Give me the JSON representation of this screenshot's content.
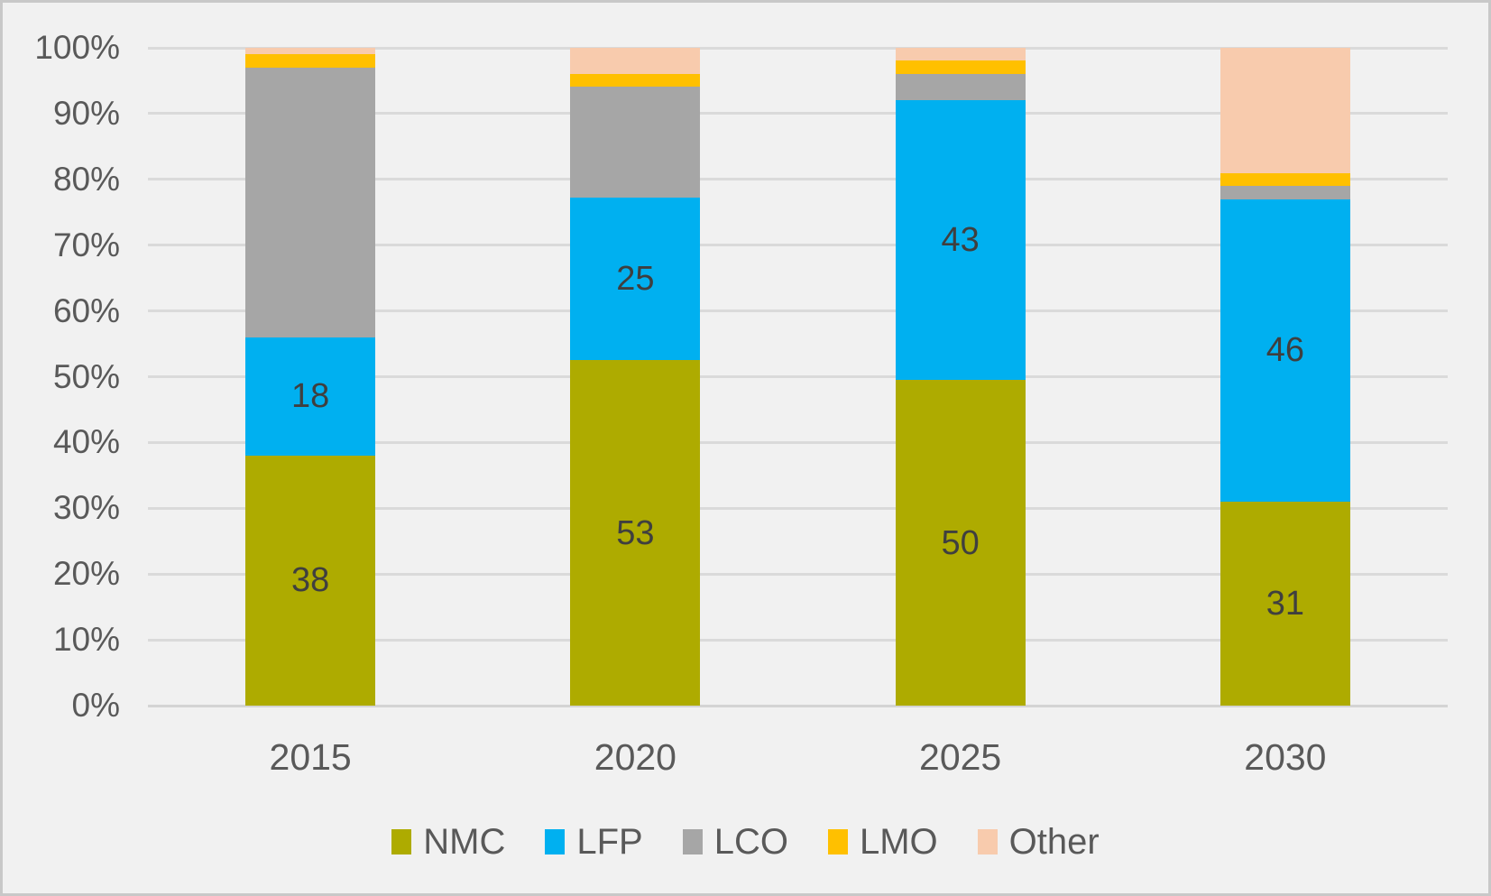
{
  "chart_data": {
    "type": "bar",
    "subtype": "stacked-100-percent-column",
    "title": "",
    "categories": [
      "2015",
      "2020",
      "2025",
      "2030"
    ],
    "series": [
      {
        "name": "NMC",
        "color": "#AEAB00",
        "values": [
          38,
          53,
          50,
          31
        ],
        "show_labels": true
      },
      {
        "name": "LFP",
        "color": "#00B0F0",
        "values": [
          18,
          25,
          43,
          46
        ],
        "show_labels": true
      },
      {
        "name": "LCO",
        "color": "#A6A6A6",
        "values": [
          41,
          17,
          4,
          2
        ],
        "show_labels": false
      },
      {
        "name": "LMO",
        "color": "#FFC000",
        "values": [
          2,
          2,
          2,
          2
        ],
        "show_labels": false
      },
      {
        "name": "Other",
        "color": "#F8CBAD",
        "values": [
          1,
          4,
          2,
          19
        ],
        "show_labels": false
      }
    ],
    "data_labels": {
      "NMC": [
        "38",
        "53",
        "50",
        "31"
      ],
      "LFP": [
        "18",
        "25",
        "43",
        "46"
      ]
    },
    "y_axis": {
      "min": 0,
      "max": 100,
      "tick_step": 10,
      "tick_labels": [
        "0%",
        "10%",
        "20%",
        "30%",
        "40%",
        "50%",
        "60%",
        "70%",
        "80%",
        "90%",
        "100%"
      ]
    },
    "x_axis": {
      "labels": [
        "2015",
        "2020",
        "2025",
        "2030"
      ]
    },
    "legend": {
      "position": "bottom",
      "entries": [
        "NMC",
        "LFP",
        "LCO",
        "LMO",
        "Other"
      ]
    },
    "grid": true
  },
  "colors": {
    "background": "#F1F1F1",
    "frame_border": "#C8C8C8",
    "gridline": "#DADADA",
    "axis_text": "#595959",
    "data_label_text": "#3F3F3F"
  }
}
